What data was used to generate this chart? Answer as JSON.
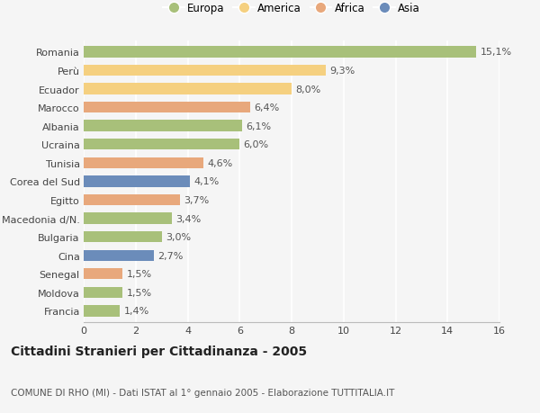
{
  "categories": [
    "Romania",
    "Perù",
    "Ecuador",
    "Marocco",
    "Albania",
    "Ucraina",
    "Tunisia",
    "Corea del Sud",
    "Egitto",
    "Macedonia d/N.",
    "Bulgaria",
    "Cina",
    "Senegal",
    "Moldova",
    "Francia"
  ],
  "values": [
    15.1,
    9.3,
    8.0,
    6.4,
    6.1,
    6.0,
    4.6,
    4.1,
    3.7,
    3.4,
    3.0,
    2.7,
    1.5,
    1.5,
    1.4
  ],
  "labels": [
    "15,1%",
    "9,3%",
    "8,0%",
    "6,4%",
    "6,1%",
    "6,0%",
    "4,6%",
    "4,1%",
    "3,7%",
    "3,4%",
    "3,0%",
    "2,7%",
    "1,5%",
    "1,5%",
    "1,4%"
  ],
  "continents": [
    "Europa",
    "America",
    "America",
    "Africa",
    "Europa",
    "Europa",
    "Africa",
    "Asia",
    "Africa",
    "Europa",
    "Europa",
    "Asia",
    "Africa",
    "Europa",
    "Europa"
  ],
  "continent_colors": {
    "Europa": "#a8c07a",
    "America": "#f5d080",
    "Africa": "#e8a87c",
    "Asia": "#6b8cba"
  },
  "legend_order": [
    "Europa",
    "America",
    "Africa",
    "Asia"
  ],
  "title": "Cittadini Stranieri per Cittadinanza - 2005",
  "subtitle": "COMUNE DI RHO (MI) - Dati ISTAT al 1° gennaio 2005 - Elaborazione TUTTITALIA.IT",
  "xlim": [
    0,
    16
  ],
  "xticks": [
    0,
    2,
    4,
    6,
    8,
    10,
    12,
    14,
    16
  ],
  "background_color": "#f5f5f5",
  "grid_color": "#ffffff",
  "bar_height": 0.6,
  "label_fontsize": 8,
  "tick_fontsize": 8,
  "title_fontsize": 10,
  "subtitle_fontsize": 7.5,
  "legend_fontsize": 8.5
}
